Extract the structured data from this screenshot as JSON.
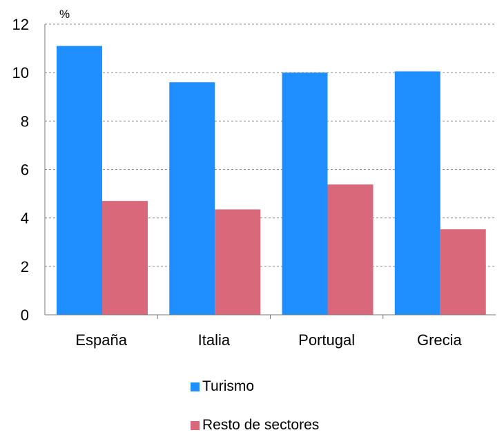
{
  "chart_data": {
    "type": "bar",
    "unit_label": "%",
    "categories": [
      "España",
      "Italia",
      "Portugal",
      "Grecia"
    ],
    "series": [
      {
        "name": "Turismo",
        "color": "#1f8fff",
        "values": [
          11.1,
          9.6,
          10.0,
          10.05
        ]
      },
      {
        "name": "Resto de sectores",
        "color": "#d9697a",
        "values": [
          4.7,
          4.35,
          5.38,
          3.53
        ]
      }
    ],
    "ylim": [
      0,
      12
    ],
    "yticks": [
      "0",
      "2",
      "4",
      "6",
      "8",
      "10",
      "12"
    ],
    "grid": true,
    "legend_position": "bottom"
  }
}
